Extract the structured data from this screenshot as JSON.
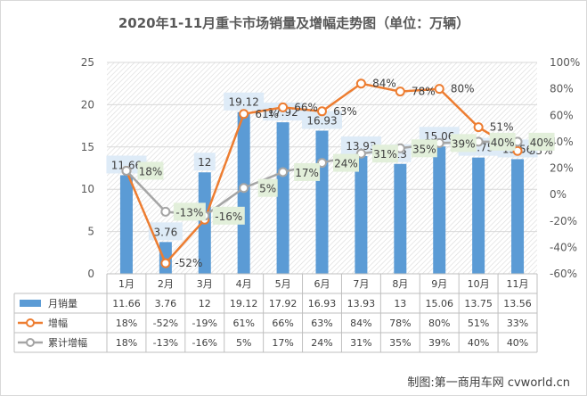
{
  "chart_data": {
    "type": "bar+line",
    "title": "2020年1-11月重卡市场销量及增幅走势图（单位：万辆）",
    "categories": [
      "1月",
      "2月",
      "3月",
      "4月",
      "5月",
      "6月",
      "7月",
      "8月",
      "9月",
      "10月",
      "11月"
    ],
    "series": [
      {
        "name": "月销量",
        "type": "bar",
        "axis": "left",
        "values": [
          11.66,
          3.76,
          12,
          19.12,
          17.92,
          16.93,
          13.93,
          13,
          15.06,
          13.75,
          13.56
        ],
        "table": [
          "11.66",
          "3.76",
          "12",
          "19.12",
          "17.92",
          "16.93",
          "13.93",
          "13",
          "15.06",
          "13.75",
          "13.56"
        ],
        "color": "#5B9BD5"
      },
      {
        "name": "增幅",
        "type": "line",
        "axis": "right",
        "values": [
          18,
          -52,
          -19,
          61,
          66,
          63,
          84,
          78,
          80,
          51,
          33
        ],
        "table": [
          "18%",
          "-52%",
          "-19%",
          "61%",
          "66%",
          "63%",
          "84%",
          "78%",
          "80%",
          "51%",
          "33%"
        ],
        "color": "#ED7D31"
      },
      {
        "name": "累计增幅",
        "type": "line",
        "axis": "right",
        "values": [
          18,
          -13,
          -16,
          5,
          17,
          24,
          31,
          35,
          39,
          40,
          40
        ],
        "table": [
          "18%",
          "-13%",
          "-16%",
          "5%",
          "17%",
          "24%",
          "31%",
          "35%",
          "39%",
          "40%",
          "40%"
        ],
        "color": "#A5A5A5"
      }
    ],
    "left_axis": {
      "ylim": [
        0,
        25
      ],
      "ticks": [
        "0",
        "5",
        "10",
        "15",
        "20",
        "25"
      ]
    },
    "right_axis": {
      "ylim": [
        -60,
        100
      ],
      "ticks": [
        "-60%",
        "-40%",
        "-20%",
        "0%",
        "20%",
        "40%",
        "60%",
        "80%",
        "100%"
      ]
    },
    "bar_labels": [
      "11.66",
      "3.76",
      "12",
      "19.12",
      "17.92",
      "16.93",
      "13.93",
      "13",
      "15.06",
      "13.75",
      "13.56"
    ],
    "growth_labels": [
      "",
      "-52%",
      "",
      "61%",
      "66%",
      "63%",
      "84%",
      "78%",
      "80%",
      "51%",
      "33%"
    ],
    "cumulative_labels": [
      "18%",
      "-13%",
      "-16%",
      "5%",
      "17%",
      "24%",
      "31%",
      "35%",
      "39%",
      "40%",
      "40%"
    ],
    "legend_placement": "data-table-left",
    "grid": true
  },
  "source": "制图:第一商用车网 cvworld.cn"
}
